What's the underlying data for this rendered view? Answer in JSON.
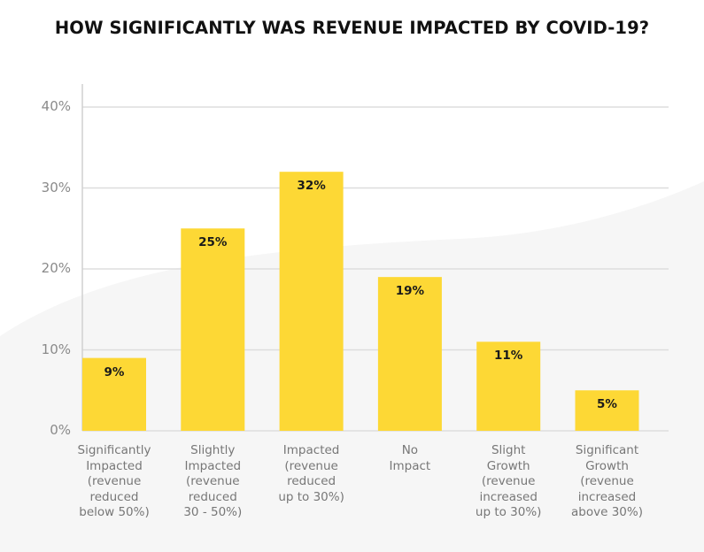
{
  "chart_data": {
    "type": "bar",
    "title": "HOW SIGNIFICANTLY WAS REVENUE IMPACTED BY COVID-19?",
    "categories": [
      [
        "Significantly",
        "Impacted",
        "(revenue",
        "reduced",
        "below 50%)"
      ],
      [
        "Slightly",
        "Impacted",
        "(revenue",
        "reduced",
        "30 - 50%)"
      ],
      [
        "Impacted",
        "(revenue",
        "reduced",
        "up to 30%)"
      ],
      [
        "No",
        "Impact"
      ],
      [
        "Slight",
        "Growth",
        "(revenue",
        "increased",
        "up to 30%)"
      ],
      [
        "Significant",
        "Growth",
        "(revenue",
        "increased",
        "above 30%)"
      ]
    ],
    "values": [
      9,
      25,
      32,
      19,
      11,
      5
    ],
    "data_labels": [
      "9%",
      "25%",
      "32%",
      "19%",
      "11%",
      "5%"
    ],
    "yticks": [
      "0%",
      "10%",
      "20%",
      "30%",
      "40%"
    ],
    "ylim": [
      0,
      40
    ],
    "grid": true,
    "xlabel": "",
    "ylabel": "",
    "colors": {
      "bar": "#FDD835",
      "grid": "#dddddd",
      "background_shape": "#f6f6f6"
    }
  }
}
